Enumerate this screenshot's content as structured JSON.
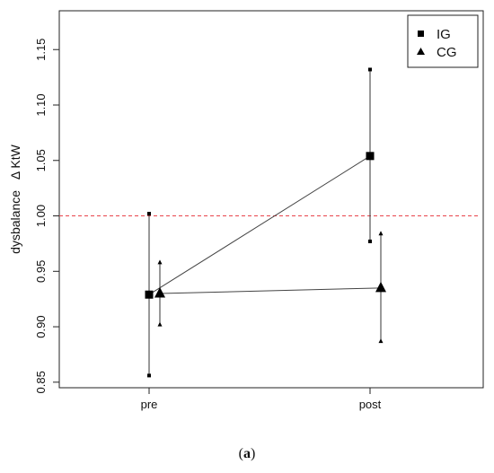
{
  "chart_data": {
    "type": "line",
    "categories": [
      "pre",
      "post"
    ],
    "ylabel_main": "dysbalance",
    "ylabel_delta": "Δ KtW",
    "ylim": [
      0.845,
      1.185
    ],
    "yticks": [
      "0.85",
      "0.90",
      "0.95",
      "1.00",
      "1.05",
      "1.10",
      "1.15"
    ],
    "yticks_values": [
      0.85,
      0.9,
      0.95,
      1.0,
      1.05,
      1.1,
      1.15
    ],
    "reference_line": {
      "y": 1.0,
      "color": "#e8434b",
      "style": "dashed"
    },
    "series": [
      {
        "name": "IG",
        "marker": "square",
        "values": [
          0.929,
          1.054
        ],
        "lower": [
          0.856,
          0.977
        ],
        "upper": [
          1.002,
          1.132
        ]
      },
      {
        "name": "CG",
        "marker": "triangle",
        "values": [
          0.93,
          0.935
        ],
        "lower": [
          0.902,
          0.887
        ],
        "upper": [
          0.958,
          0.984
        ]
      }
    ],
    "legend_position": "top-right",
    "grid": false
  },
  "caption": {
    "open": "(",
    "letter": "a",
    "close": ")"
  }
}
